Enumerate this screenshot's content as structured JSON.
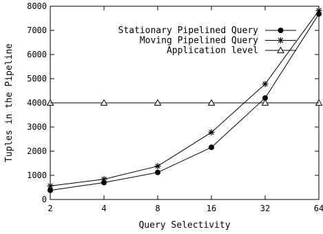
{
  "chart_data": {
    "type": "line",
    "xlabel": "Query Selectivity",
    "ylabel": "Tuples in the Pipeline",
    "x_scale": "log2",
    "categories": [
      "2",
      "4",
      "8",
      "16",
      "32",
      "64"
    ],
    "x_values": [
      2,
      4,
      8,
      16,
      32,
      64
    ],
    "ylim": [
      0,
      8000
    ],
    "y_ticks": [
      0,
      1000,
      2000,
      3000,
      4000,
      5000,
      6000,
      7000,
      8000
    ],
    "grid": false,
    "legend_position": "top-right",
    "series": [
      {
        "name": "Stationary Pipelined Query",
        "marker": "filled-circle",
        "x": [
          2,
          4,
          8,
          16,
          32,
          64
        ],
        "values": [
          380,
          700,
          1120,
          2160,
          4200,
          7680
        ]
      },
      {
        "name": "Moving Pipelined Query",
        "marker": "asterisk",
        "x": [
          2,
          4,
          8,
          16,
          32,
          64
        ],
        "values": [
          560,
          840,
          1380,
          2780,
          4780,
          7820
        ]
      },
      {
        "name": "Application level",
        "marker": "open-triangle",
        "x": [
          2,
          4,
          8,
          16,
          32,
          64
        ],
        "values": [
          4000,
          4000,
          4000,
          4000,
          4000,
          4000
        ]
      }
    ]
  }
}
